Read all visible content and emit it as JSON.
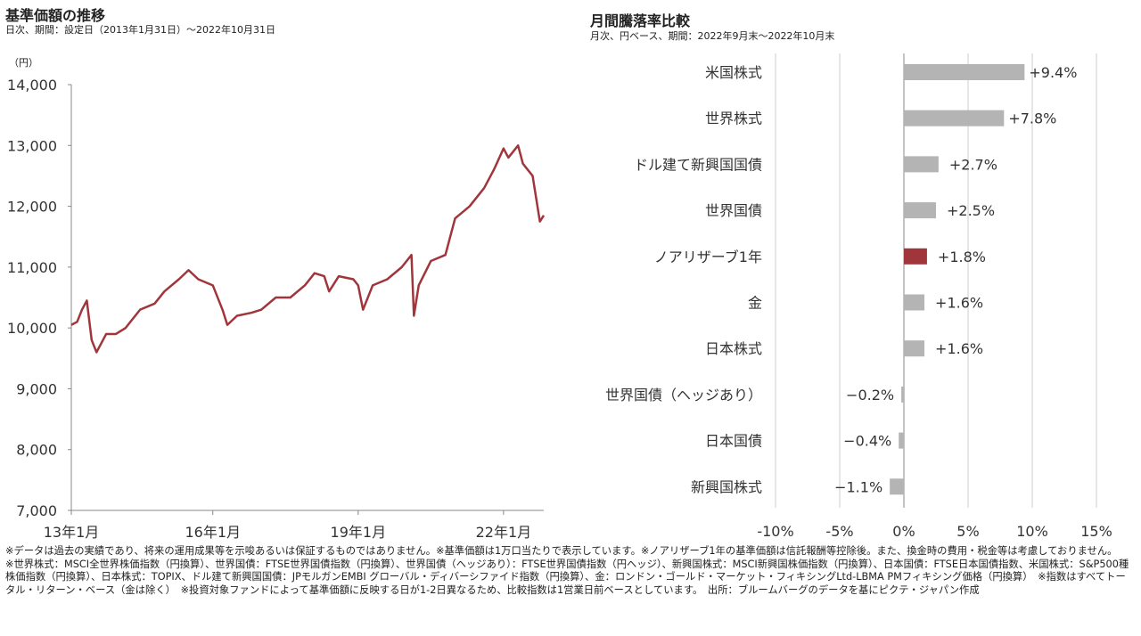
{
  "left": {
    "title": "基準価額の推移",
    "subtitle": "日次、期間：設定日（2013年1月31日）～2022年10月31日",
    "unit": "（円）"
  },
  "right": {
    "title": "月間騰落率比較",
    "subtitle": "月次、円ベース、期間：2022年9月末～2022年10月末"
  },
  "chart_data": [
    {
      "type": "line",
      "title": "基準価額の推移",
      "ylabel": "円",
      "ylim": [
        7000,
        14000
      ],
      "yticks": [
        "7,000",
        "8,000",
        "9,000",
        "10,000",
        "11,000",
        "12,000",
        "13,000",
        "14,000"
      ],
      "ytick_values": [
        7000,
        8000,
        9000,
        10000,
        11000,
        12000,
        13000,
        14000
      ],
      "xticks": [
        "13年1月",
        "16年1月",
        "19年1月",
        "22年1月"
      ],
      "xtick_values": [
        2013.0,
        2016.0,
        2019.0,
        2022.0
      ],
      "xlim": [
        2013.08,
        2022.83
      ],
      "color": "#A0363C",
      "series": [
        {
          "name": "ノアリザーブ1年",
          "x": [
            2013.08,
            2013.2,
            2013.3,
            2013.4,
            2013.5,
            2013.6,
            2013.7,
            2013.8,
            2014.0,
            2014.2,
            2014.5,
            2014.8,
            2015.0,
            2015.3,
            2015.5,
            2015.7,
            2016.0,
            2016.2,
            2016.3,
            2016.5,
            2016.8,
            2017.0,
            2017.3,
            2017.6,
            2017.9,
            2018.1,
            2018.3,
            2018.4,
            2018.6,
            2018.9,
            2019.0,
            2019.1,
            2019.3,
            2019.6,
            2019.9,
            2020.1,
            2020.15,
            2020.25,
            2020.5,
            2020.8,
            2020.9,
            2021.0,
            2021.3,
            2021.6,
            2021.8,
            2022.0,
            2022.1,
            2022.3,
            2022.4,
            2022.6,
            2022.75,
            2022.83
          ],
          "values": [
            10050,
            10100,
            10300,
            10450,
            9800,
            9600,
            9750,
            9900,
            9900,
            10000,
            10300,
            10400,
            10600,
            10800,
            10950,
            10800,
            10700,
            10300,
            10050,
            10200,
            10250,
            10300,
            10500,
            10500,
            10700,
            10900,
            10850,
            10600,
            10850,
            10800,
            10700,
            10300,
            10700,
            10800,
            11000,
            11200,
            10200,
            10700,
            11100,
            11200,
            11500,
            11800,
            12000,
            12300,
            12600,
            12950,
            12800,
            13000,
            12700,
            12500,
            11750,
            11850
          ]
        }
      ]
    },
    {
      "type": "bar",
      "orientation": "horizontal",
      "title": "月間騰落率比較",
      "xlim": [
        -10,
        15
      ],
      "xticks": [
        "-10%",
        "-5%",
        "0%",
        "5%",
        "10%",
        "15%"
      ],
      "xtick_values": [
        -10,
        -5,
        0,
        5,
        10,
        15
      ],
      "categories": [
        "米国株式",
        "世界株式",
        "ドル建て新興国国債",
        "世界国債",
        "ノアリザーブ1年",
        "金",
        "日本株式",
        "世界国債（ヘッジあり）",
        "日本国債",
        "新興国株式"
      ],
      "values": [
        9.4,
        7.8,
        2.7,
        2.5,
        1.8,
        1.6,
        1.6,
        -0.2,
        -0.4,
        -1.1
      ],
      "labels": [
        "+9.4%",
        "+7.8%",
        "+2.7%",
        "+2.5%",
        "+1.8%",
        "+1.6%",
        "+1.6%",
        "−0.2%",
        "−0.4%",
        "−1.1%"
      ],
      "highlight": "ノアリザーブ1年",
      "color": "#B4B4B4",
      "highlight_color": "#A0363C"
    }
  ],
  "notes": [
    "※データは過去の実績であり、将来の運用成果等を示唆あるいは保証するものではありません。※基準価額は1万口当たりで表示しています。※ノアリザーブ1年の基準価額は信託報酬等控除後。また、換金時の費用・税金等は考慮しておりません。",
    "※世界株式：MSCI全世界株価指数（円換算）、世界国債：FTSE世界国債指数（円換算）、世界国債（ヘッジあり）：FTSE世界国債指数（円ヘッジ）、新興国株式：MSCI新興国株価指数（円換算）、日本国債：FTSE日本国債指数、米国株式：S&P500種株価指数（円換算）、日本株式：TOPIX、ドル建て新興国国債：JPモルガンEMBI グローバル・ディバーシファイド指数（円換算）、金：ロンドン・ゴールド・マーケット・フィキシングLtd-LBMA PMフィキシング価格（円換算）　※指数はすべてトータル・リターン・ベース（金は除く）　※投資対象ファンドによって基準価額に反映する日が1-2日異なるため、比較指数は1営業日前ベースとしています。　出所：ブルームバーグのデータを基にピクテ・ジャパン作成"
  ]
}
